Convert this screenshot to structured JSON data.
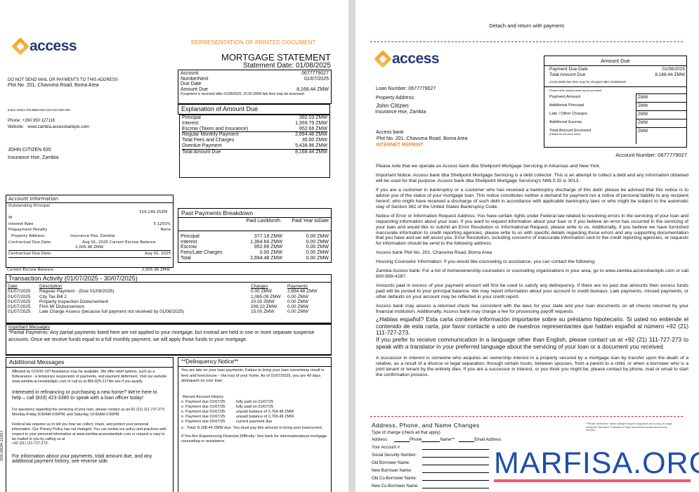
{
  "colors": {
    "brand_blue": "#253876",
    "brand_orange": "#f08a24",
    "dash_red": "#d9232e",
    "watermark_blue": "#1f4fa8",
    "watermark_red": "#ee5a6a"
  },
  "statement": {
    "logo_text": "access",
    "representation": "REPRESENTATION OF PRINTED DOCUMENT",
    "title": "MORTGAGE STATEMENT",
    "statement_date": "Statement Date: 01/08/2025",
    "sender": {
      "warning": "DO NOT SEND MAIL OR PAYMENTS TO THIS ADDRESS",
      "address": "Plot No. 201, Chavuma Road, Boma Area",
      "code": "8-811-24911-0014859-002-010-010-000-000",
      "phone": "Phone:  +260 950 127116",
      "website_label": "Website:",
      "website": "www.zambia.accessbankplc.com"
    },
    "recipient": {
      "name": "JOHN CITIZEN 635",
      "address": "Insurance Hse, Zambia"
    },
    "summary": {
      "account_label": "Account",
      "account_value": "0677779027",
      "next_label": "NumberNext",
      "next_value": "01/07/2025",
      "due_date_label": "Due Date",
      "amount_label": "Amount Due",
      "amount_value": "8,168.44 ZMW",
      "late_note": "If payment is received after 01/08/2025, 15.00 ZMW late fees may be assessed."
    },
    "explanation": {
      "title": "Explanation of Amount Due",
      "rows": [
        {
          "label": "Principal",
          "value": "382.03 ZMW"
        },
        {
          "label": "Interest",
          "value": "1,359.79  ZMW"
        },
        {
          "label": "Escrow (Taxes and Insurance)",
          "value": "952.66  ZMW"
        },
        {
          "label": "Regular Monthly Payment",
          "value": "2,694.48  ZMW"
        },
        {
          "label": "Total Fees and Charges",
          "value": "35.00  ZMW"
        },
        {
          "label": "Overdue Payment",
          "value": "5,438.96  ZMW"
        },
        {
          "label": "Total Amount Due",
          "value": "8,168.44  ZMW"
        }
      ]
    },
    "account_info": {
      "title": "Account  Information",
      "outstanding_label": "Outstanding Principal",
      "outstanding_value": "319,149.25ZM",
      "outstanding_wrap": "W",
      "rate_label": "Interest Rate",
      "rate_value": "5.1250%",
      "penalty_label": "Prepayment Penalty",
      "penalty_value": "None",
      "property_label": "Property Address:",
      "property_value": "Insurance Hse, Zambia",
      "contractual_label": "Contractual Due Date:",
      "contractual_inline": "Aug 01, 2025 Current Escrow Balance:",
      "escrow_inline": "2,005.96 ZMW",
      "contractual_label2": "Contractual Due Date:",
      "contractual_value2": "Aug 01, 2025",
      "escrow_label2": "Current Escrow Balance:",
      "escrow_value2": "2,005.96 ZMW"
    },
    "past_payments": {
      "title": "Past Payments Breakdown",
      "col1": "Paid LastMonth",
      "col2": "Paid Year toDate",
      "rows": [
        {
          "label": "Principal",
          "last": "377.18  ZMW",
          "ytd": "0.00  ZMW"
        },
        {
          "label": "Interest",
          "last": "1,364.64  ZMW",
          "ytd": "0.00  ZMW"
        },
        {
          "label": "Escrow",
          "last": "952.66  ZMW",
          "ytd": "0.00  ZMW"
        },
        {
          "label": "Fees/Late Charges",
          "last": "0.00  ZMW",
          "ytd": "0.00  ZMW"
        },
        {
          "label": "Total",
          "last": "2,694.48  ZMW",
          "ytd": "0.00  ZMW"
        }
      ]
    },
    "transactions": {
      "title": "Transaction Activity (01/07/2025 - 30/07/2025)",
      "headers": {
        "date": "Date",
        "description": "Description",
        "charges": "Charges",
        "payments": "Payments"
      },
      "rows": [
        {
          "date": "01/07/2025",
          "description": "Regular Payment - (Due 01/08/2025)",
          "charges": "0.00 ZMW",
          "payments": "2,694.48 ZMW"
        },
        {
          "date": "01/07/2025",
          "description": "City Tax Bill 2",
          "charges": "1,085.09 ZMW",
          "payments": "0.00 ZMW"
        },
        {
          "date": "01/07/2025",
          "description": "Property Inspection Disbursement",
          "charges": "20.00 ZMW",
          "payments": "0.00 ZMW"
        },
        {
          "date": "01/07/2025",
          "description": "FHA MI Disbursement",
          "charges": "208.23 ZMW",
          "payments": "0.00 ZMW"
        },
        {
          "date": "01/07/2025",
          "description": "Late Charge Assess (because full payment not received by 01/08/2025)",
          "charges": "15.00 ZMW",
          "payments": "0.00 ZMW"
        }
      ]
    },
    "important": {
      "title": "Important Messages",
      "text": "*Partial Payments: Any partial payments listed here are not applied to your mortgage, but instead are held in one or more separate suspense accounts. Once we receive funds equal to a full monthly payment, we will apply those funds to your mortgage."
    },
    "additional": {
      "title": "Additional Messages",
      "p1": "Affected by COVID-19? Assistance may be available. We offer relief options, such as a forbearance - a temporary suspension of payments, and payment deferment. Visit our website www.zambia.accessbankplc.com or call us at 866-825-2174to see if you qualify.",
      "p2": "Interested in refinancing or purchasing a new home? We're here to help – call (833) 423-3380 to speak with a loan officer today!",
      "p3": "For questions regarding the servicing of your loan, please contact us at+92 (21) 111-727-273",
      "p3b": " Monday-Friday 8:00AM-9:00PM, and Saturday 10:00AM-2:00PM.",
      "p4": "Federal law requires us to tell you how we collect, share, and protect your personal information. Our Privacy Policy has not changed. You can review our policy and practices with respect to your personal information at www.zambia.accessbankplc.com or request a copy to be mailed to you by calling us at",
      "p4b": "+92 (21) 111-727-273.",
      "p5": "For information about your payments, total amount due, and any additional payment history, see reverse side."
    },
    "delinquency": {
      "title": "**Delinquency Notice**",
      "p1": "You are late on your loan payments. Failure to bring your loan currentmay result in fees and foreclosure – the loss of your home. As of 01/07/2025, you are 49 days delinquent on your loan.",
      "history_title": "Recent Account History",
      "history": [
        {
          "due": "Payment due 01/07/25:",
          "status": "fully paid on 01/07/25"
        },
        {
          "due": "Payment due 01/07/25:",
          "status": "fully paid on 01/07/25"
        },
        {
          "due": "Payment due 01/07/25:",
          "status": "unpaid balance of 2,764.48 ZMW"
        },
        {
          "due": "Payment due 01/07/25:",
          "status": "unpaid balance of 2,709.48 ZMW"
        },
        {
          "due": "Payment due 02/07/25:",
          "status": "current payment due"
        }
      ],
      "total": "Total: 8,168.44 ZMW due. You must pay this amount to bring your loancurrent.",
      "difficulty": "If You Are Experiencing Financial Difficulty: See back for informationabout mortgage counseling or assistance."
    },
    "side_code": "005-9834-1100T"
  },
  "coupon": {
    "detach": "Detach and return with payment.",
    "logo_text": "access",
    "loan_number": "Loan Number: 0677779027",
    "property_label": "Property Address:",
    "name": "John Citizen",
    "address": "Insurance Hse, Zambia",
    "bank": "Access bank",
    "bank_address": "Plot No. 201, Chavuma Road, Boma Area",
    "reprint": "INTERNET REPRINT",
    "amount_due": {
      "title": "Amount Due",
      "due_date_label": "Payment Due Date",
      "due_date": "01/08/2025",
      "total_label": "Total Amount Due",
      "total": "8,168.44 ZMW",
      "late_note": "15.00 ZMW late fees may be charged after 01/08/2025",
      "instruction": "Please write clearly inside space provided",
      "fields": [
        {
          "label": "Payment Amount",
          "unit": "ZMW"
        },
        {
          "label": "Additional Principal",
          "unit": "ZMW"
        },
        {
          "label": "Late / Other Charges",
          "unit": "ZMW"
        },
        {
          "label": "Additional Escrow",
          "unit": "ZMW"
        },
        {
          "label": "Total Amount Enclosed",
          "unit": "ZMW"
        }
      ],
      "no_cash": "(Please do not send cash)"
    },
    "account_number": "Account Number: 0677779027",
    "paragraphs": [
      "Please note that we operate as Access bank dba Shellpoint Mortgage Servicing in Arkansas and New York.",
      "Important Notice: Access bank dba Shellpoint Mortgage Servicing is a debt collector. This is an attempt to collect a debt and any information obtained will be used for that purpose. Access bank dba Shellpoint Mortgage Servicing's NMLS ID is 3013.",
      "If you are a customer in bankruptcy or a customer who has received a bankruptcy discharge of this debt: please be advised that this notice is to advise you of the status of your mortgage loan. This notice constitutes neither a demand for payment nor a notice of personal liability to any recipient hereof, who might have received a discharge of such debt in accordance with applicable bankruptcy laws or who might be subject to the automatic stay of Section 362 of the United States Bankruptcy Code.",
      "Notice of Error or Information Request Address. You have certain rights under Federal law related to resolving errors in the servicing of your loan and requesting information about your loan. If you want to request information about your loan or if you believe an error has occurred in the servicing of your loan and would like to submit an Error Resolution or Informational Request, please write to us. Additionally, if you believe we have furnished inaccurate information to credit reporting agencies, please write to us with specific details regarding those errors and any supporting documentation that you have and we will assist you. Error Resolution, including concerns of inaccurate information sent to the credit reporting agencies, or requests for information should be send to the following address:",
      "Access bank Plot No. 201, Chavuma Road, Boma Area",
      "Housing Counselor Information: If you would like counseling or assistance, you can contact the following:",
      "Zambia Access bank: For a list of homeownership counselors or counseling organizations in your area, go to www.zambia.accessbankplc.com or call 800-569-4287.",
      "Amounts paid in excess of your payment amount will first be used to satisfy any delinquency. If there are no past due amounts then excess funds paid will be posted to your principal balance. We may report information about your account to credit bureaus. Late payments, missed payments, or other defaults on your account may be reflected in your credit report.",
      "Access bank may assess a returned check fee consistent with the laws for your state and your loan documents on all checks returned by your financial institution. Additionally, Access bank may charge a fee for processing payoff requests."
    ],
    "spanish": "¿Hablas español? Esta carta contiene información importante sobre su préstamo hipotecario. Si usted no entiende el contenido de esta carta, por favor contacte a uno de nuestros representantes que hablan español al número +92 (21) 111-727-273.",
    "language": "If you prefer to receive communication in a language other than English, please contact us at +92 (21) 111-727-273 to speak with a translator in your preferred language about the servicing of your loan or a document you received.",
    "successor": "A successor in interest is someone who acquires an ownership interest in a property secured by a mortgage loan by transfer upon the death of a relative, as a result of a divorce or legal separation, through certain trusts, between spouses, from a parent to a child, or when a borrower who is a joint tenant or tenant by the entirety dies. If you are a successor in interest, or you think you might be, please contact by phone, mail or email to start the confirmation process.",
    "changes": {
      "title": "Address, Phone, and Name Changes",
      "note": "**Please remember: Name changes require a signature and a copy of a legal noting the new name. Examples of legal documents licenses and divorce decrees.",
      "type_label": "Type of change (check all that apply)",
      "address": "Address",
      "phone": "Phone",
      "name": "Name**",
      "email": "Email Address",
      "account": "Your Account #",
      "ssn": "Social Security Number:",
      "old_borrower": "Old Borrower Name:",
      "new_borrower": "New Borrower Name:",
      "old_co": "Old Co-Borrower Name:",
      "new_co": "New Co-Borrower Name:"
    }
  },
  "watermark": "MARFISA.ORG"
}
